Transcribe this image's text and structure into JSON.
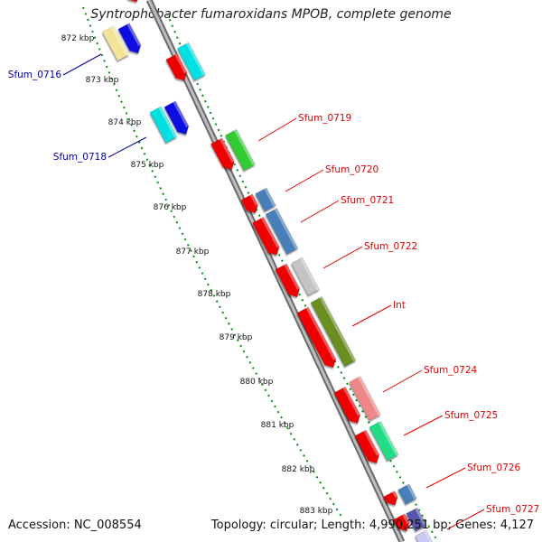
{
  "title": "Syntrophobacter fumaroxidans MPOB, complete genome",
  "footer": {
    "accession": "Accession: NC_008554",
    "summary": "Topology: circular; Length: 4,990,251 bp; Genes: 4,127"
  },
  "ticks": [
    "872 kbp",
    "873 kbp",
    "874 kbp",
    "875 kbp",
    "876 kbp",
    "877 kbp",
    "878 kbp",
    "879 kbp",
    "880 kbp",
    "881 kbp",
    "882 kbp",
    "883 kbp"
  ],
  "genes_left": [
    {
      "label": "Sfum_0716",
      "color": "#0000a0"
    },
    {
      "label": "Sfum_0718",
      "color": "#0000a0"
    }
  ],
  "genes_right": [
    {
      "label": "Sfum_0719",
      "color": "#e00000"
    },
    {
      "label": "Sfum_0720",
      "color": "#e00000"
    },
    {
      "label": "Sfum_0721",
      "color": "#e00000"
    },
    {
      "label": "Sfum_0722",
      "color": "#e00000"
    },
    {
      "label": "Int",
      "color": "#e00000"
    },
    {
      "label": "Sfum_0724",
      "color": "#e00000"
    },
    {
      "label": "Sfum_0725",
      "color": "#e00000"
    },
    {
      "label": "Sfum_0726",
      "color": "#e00000"
    },
    {
      "label": "Sfum_0727",
      "color": "#e00000"
    }
  ],
  "colors": {
    "backbone": "#8a8a8a",
    "tick_dots": "#118811",
    "orf_red": "#ee0000",
    "cyan": "#00e0e0",
    "blue": "#1010e0",
    "yellow": "#f4e49a",
    "lavender": "#c8c8f0",
    "green": "#33cc33",
    "steelblue": "#4a7fb8",
    "silver": "#c4c4c4",
    "olive": "#6b8e23",
    "pink": "#ee8888",
    "mint": "#22dd88",
    "purple": "#5555aa"
  }
}
